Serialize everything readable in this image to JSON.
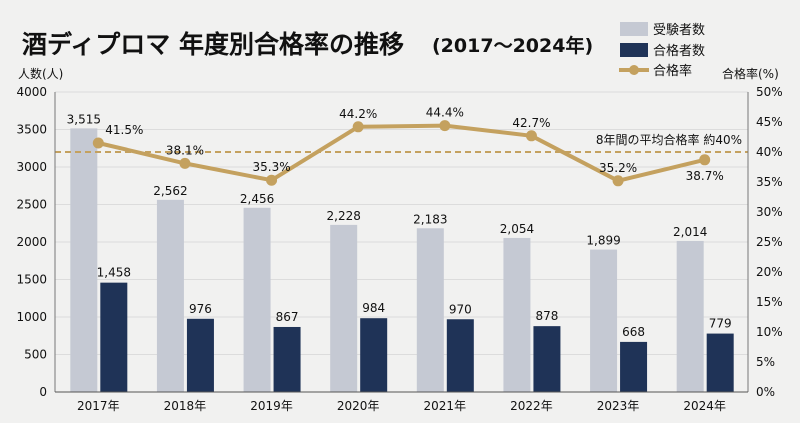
{
  "chart_data": {
    "type": "bar",
    "title": "酒ディプロマ 年度別合格率の推移",
    "title_suffix": "(2017〜2024年)",
    "ylabel_left": "人数(人)",
    "ylabel_right": "合格率(%)",
    "categories": [
      "2017年",
      "2018年",
      "2019年",
      "2020年",
      "2021年",
      "2022年",
      "2023年",
      "2024年"
    ],
    "ylim_left": [
      0,
      4000
    ],
    "yticks_left": [
      "0",
      "500",
      "1000",
      "1500",
      "2000",
      "2500",
      "3000",
      "3500",
      "4000"
    ],
    "ylim_right": [
      0,
      50
    ],
    "yticks_right": [
      "0%",
      "5%",
      "10%",
      "15%",
      "20%",
      "25%",
      "30%",
      "35%",
      "40%",
      "45%",
      "50%"
    ],
    "grid": true,
    "legend_position": "top-right",
    "series": [
      {
        "name": "受験者数",
        "kind": "bar",
        "color": "#c5c9d3",
        "values": [
          3515,
          2562,
          2456,
          2228,
          2183,
          2054,
          1899,
          2014
        ],
        "labels": [
          "3,515",
          "2,562",
          "2,456",
          "2,228",
          "2,183",
          "2,054",
          "1,899",
          "2,014"
        ]
      },
      {
        "name": "合格者数",
        "kind": "bar",
        "color": "#1f3357",
        "values": [
          1458,
          976,
          867,
          984,
          970,
          878,
          668,
          779
        ],
        "labels": [
          "1,458",
          "976",
          "867",
          "984",
          "970",
          "878",
          "668",
          "779"
        ]
      },
      {
        "name": "合格率",
        "kind": "line",
        "axis": "right",
        "color": "#c4a15f",
        "values": [
          41.5,
          38.1,
          35.3,
          44.2,
          44.4,
          42.7,
          35.2,
          38.7
        ],
        "labels": [
          "41.5%",
          "38.1%",
          "35.3%",
          "44.2%",
          "44.4%",
          "42.7%",
          "35.2%",
          "38.7%"
        ]
      }
    ],
    "reference_line": {
      "value": 40,
      "axis": "right",
      "label": "8年間の平均合格率 約40%",
      "color": "#c4a15f"
    }
  }
}
